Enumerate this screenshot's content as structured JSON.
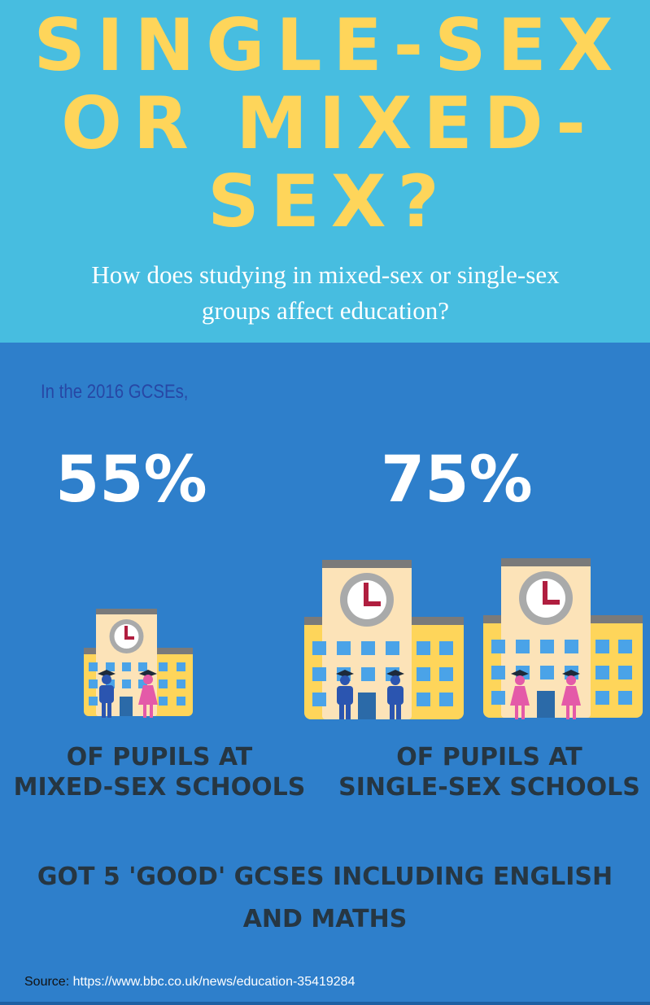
{
  "header": {
    "title_lines": [
      "SINGLE-SEX",
      "OR MIXED-",
      "SEX?"
    ],
    "subtitle_lines": [
      "How does studying in mixed-sex or single-sex",
      "groups affect education?"
    ]
  },
  "intro": "In the 2016 GCSEs,",
  "stats": {
    "mixed": {
      "percent": "55%",
      "label_lines": [
        "OF PUPILS AT",
        "MIXED-SEX SCHOOLS"
      ]
    },
    "single": {
      "percent": "75%",
      "label_lines": [
        "OF PUPILS AT",
        "SINGLE-SEX SCHOOLS"
      ]
    }
  },
  "conclusion_lines": [
    "GOT 5 'GOOD' GCSES INCLUDING ENGLISH",
    "AND MATHS"
  ],
  "source": {
    "label": "Source:",
    "url": "https://www.bbc.co.uk/news/education-35419284"
  },
  "icons": {
    "school_mixed": "school-building-icon",
    "school_boys": "school-building-icon",
    "school_girls": "school-building-icon",
    "boy_student": "male-graduate-icon",
    "girl_student": "female-graduate-icon"
  },
  "colors": {
    "header_bg": "#47bde0",
    "body_bg": "#2e7fcb",
    "title": "#fed55a",
    "intro": "#2747a5",
    "label": "#263642",
    "boy": "#2b55b0",
    "girl": "#e45aa8"
  }
}
